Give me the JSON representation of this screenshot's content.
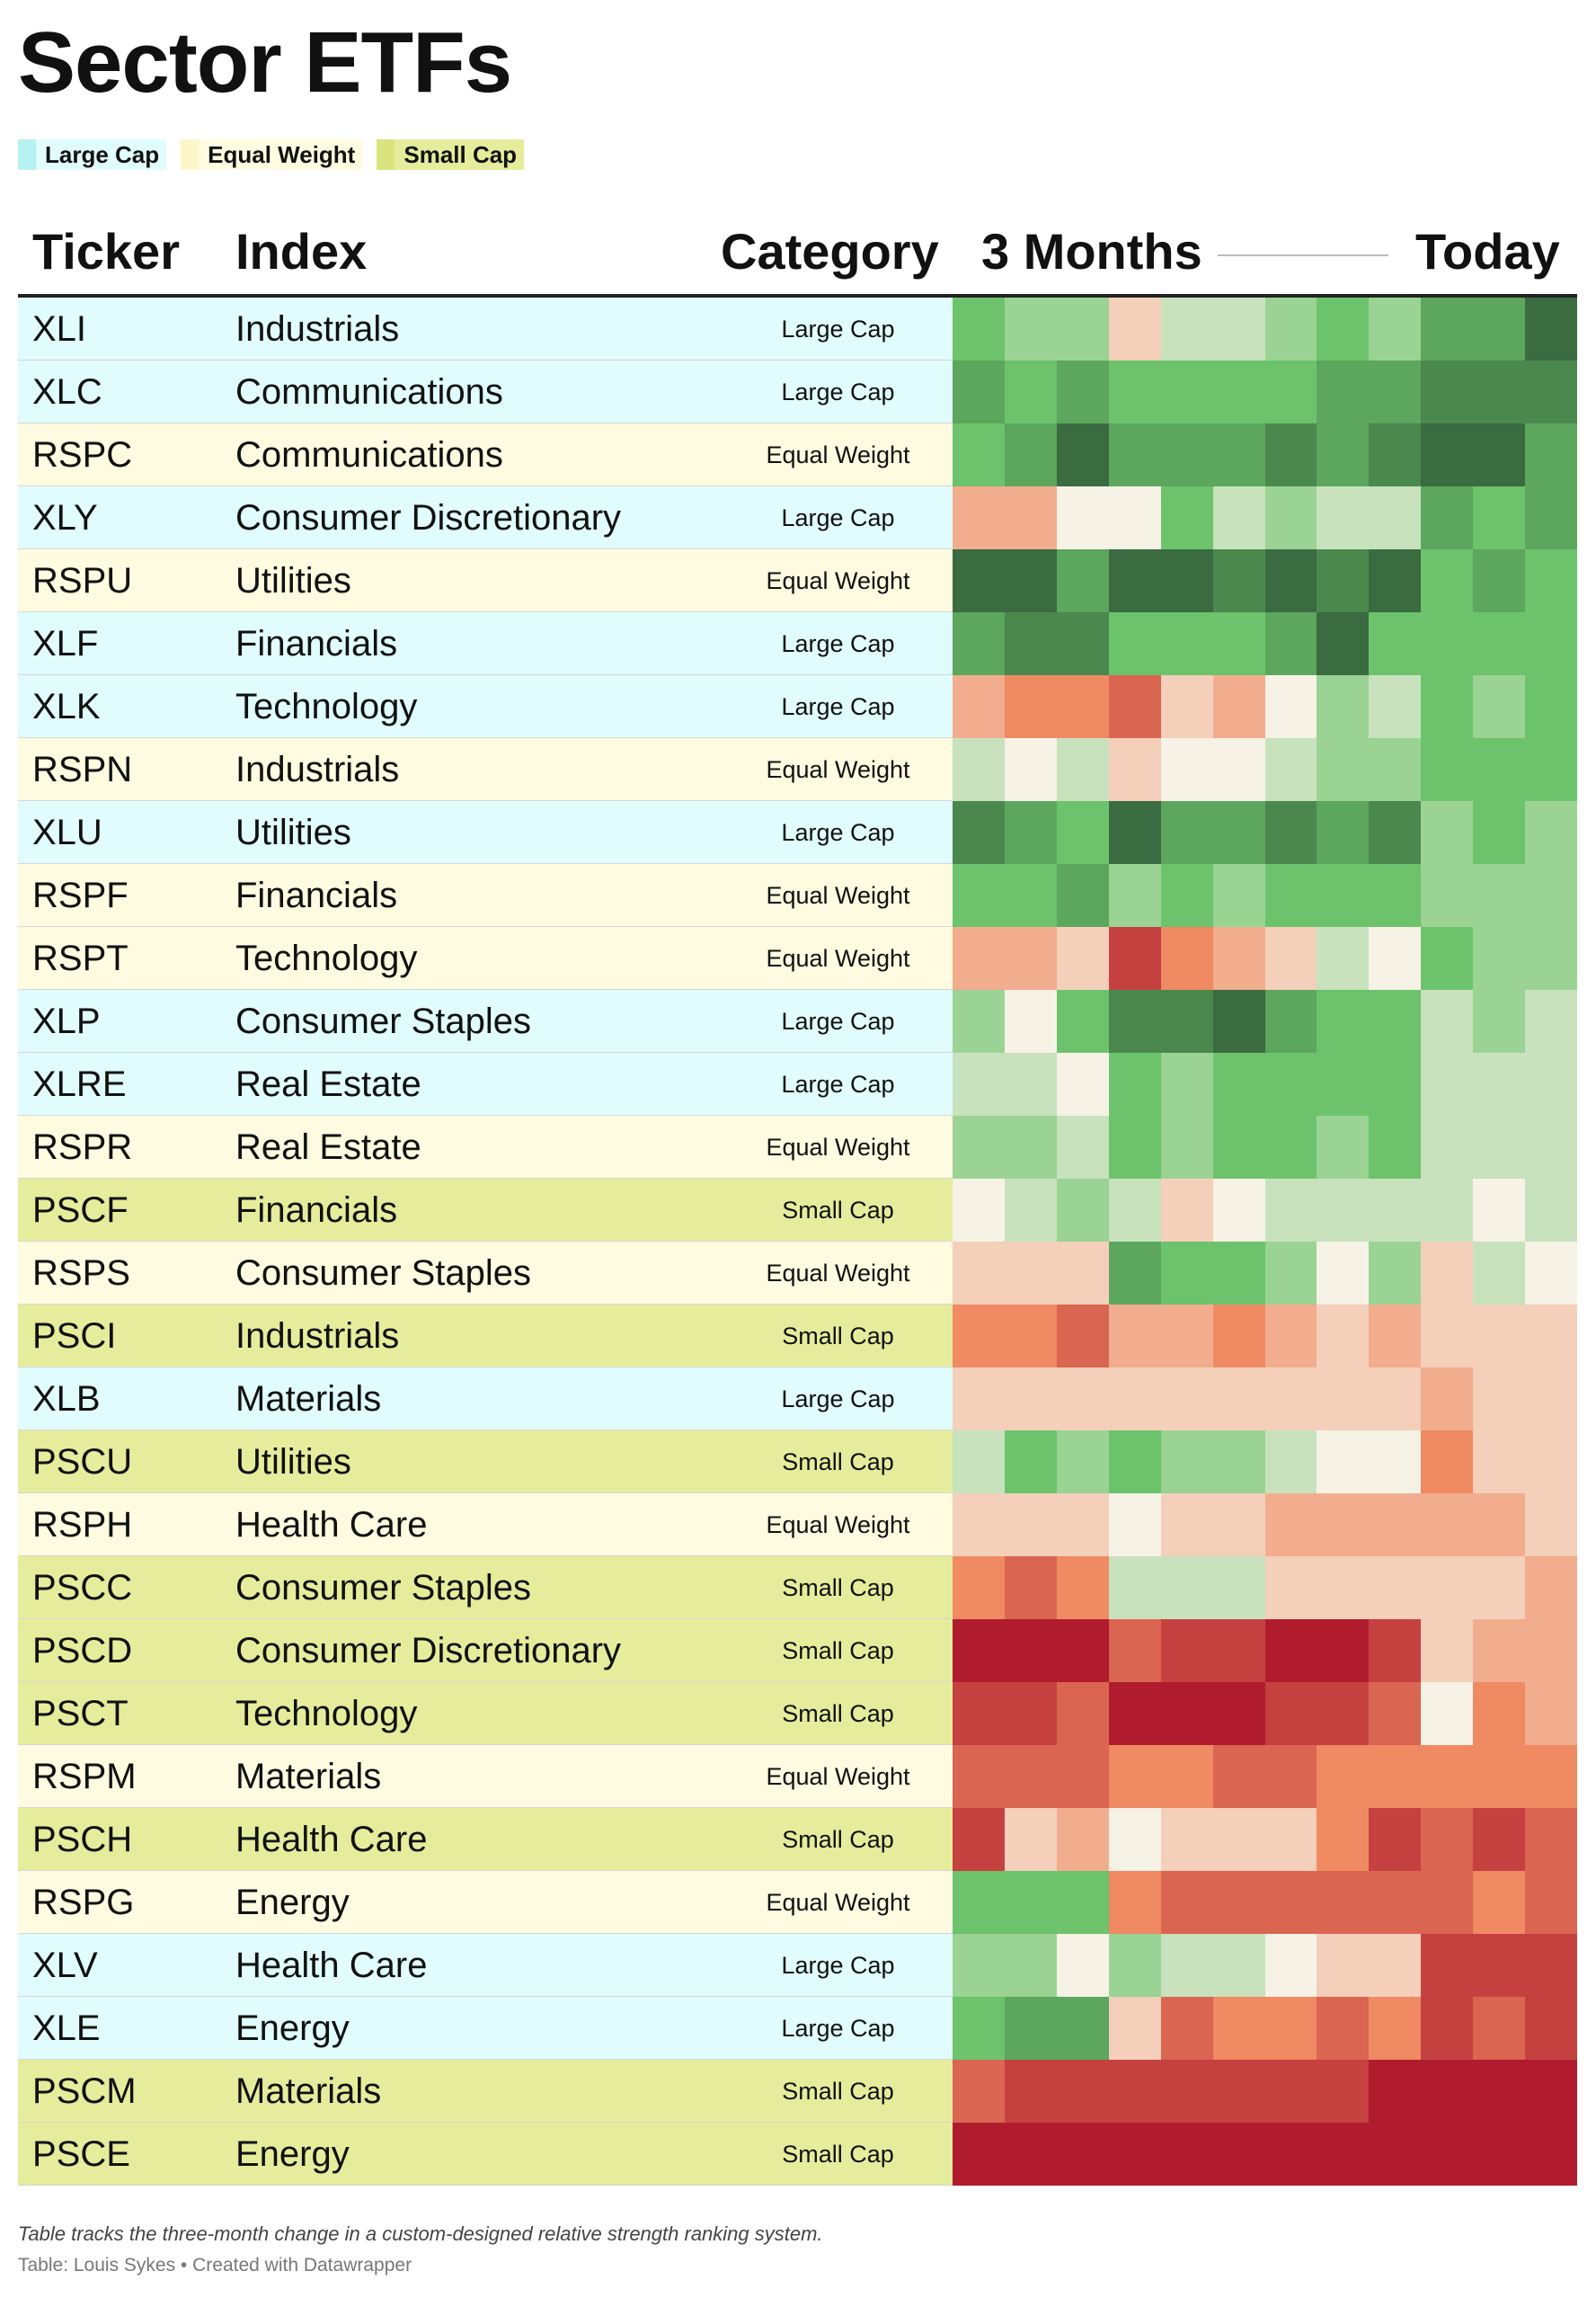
{
  "title": "Sector ETFs",
  "legend": [
    {
      "label": "Large Cap",
      "color": "#b6f2f2",
      "row_color": "#e0fcfc"
    },
    {
      "label": "Equal Weight",
      "color": "#fcf6c8",
      "row_color": "#fefbe0"
    },
    {
      "label": "Small Cap",
      "color": "#d9e47e",
      "row_color": "#e5ed9c"
    }
  ],
  "headers": {
    "ticker": "Ticker",
    "index": "Index",
    "category": "Category",
    "period_start": "3 Months",
    "period_end": "Today"
  },
  "footnote": "Table tracks the three-month change in a custom-designed relative strength ranking system.",
  "source": "Table: Louis Sykes • Created with Datawrapper",
  "chart_data": {
    "type": "heatmap",
    "title": "Sector ETFs",
    "color_scale": {
      "negative": "#b01c2e",
      "neutral": "#f6f2e6",
      "positive": "#3b6b40",
      "range": [
        -6,
        6
      ]
    },
    "columns": 12,
    "rows": [
      {
        "ticker": "XLI",
        "index": "Industrials",
        "category": "Large Cap",
        "values": [
          3,
          2,
          2,
          -1,
          1,
          1,
          2,
          3,
          2,
          4,
          4,
          6
        ]
      },
      {
        "ticker": "XLC",
        "index": "Communications",
        "category": "Large Cap",
        "values": [
          4,
          3,
          4,
          3,
          3,
          3,
          3,
          4,
          4,
          5,
          5,
          5
        ]
      },
      {
        "ticker": "RSPC",
        "index": "Communications",
        "category": "Equal Weight",
        "values": [
          3,
          4,
          6,
          4,
          4,
          4,
          5,
          4,
          5,
          6,
          6,
          4
        ]
      },
      {
        "ticker": "XLY",
        "index": "Consumer Discretionary",
        "category": "Large Cap",
        "values": [
          -2,
          -2,
          0,
          0,
          3,
          1,
          2,
          1,
          1,
          4,
          3,
          4
        ]
      },
      {
        "ticker": "RSPU",
        "index": "Utilities",
        "category": "Equal Weight",
        "values": [
          6,
          6,
          4,
          6,
          6,
          5,
          6,
          5,
          6,
          3,
          4,
          3
        ]
      },
      {
        "ticker": "XLF",
        "index": "Financials",
        "category": "Large Cap",
        "values": [
          4,
          5,
          5,
          3,
          3,
          3,
          4,
          6,
          3,
          3,
          3,
          3
        ]
      },
      {
        "ticker": "XLK",
        "index": "Technology",
        "category": "Large Cap",
        "values": [
          -2,
          -3,
          -3,
          -4,
          -1,
          -2,
          0,
          2,
          1,
          3,
          2,
          3
        ]
      },
      {
        "ticker": "RSPN",
        "index": "Industrials",
        "category": "Equal Weight",
        "values": [
          1,
          0,
          1,
          -1,
          0,
          0,
          1,
          2,
          2,
          3,
          3,
          3
        ]
      },
      {
        "ticker": "XLU",
        "index": "Utilities",
        "category": "Large Cap",
        "values": [
          5,
          4,
          3,
          6,
          4,
          4,
          5,
          4,
          5,
          2,
          3,
          2
        ]
      },
      {
        "ticker": "RSPF",
        "index": "Financials",
        "category": "Equal Weight",
        "values": [
          3,
          3,
          4,
          2,
          3,
          2,
          3,
          3,
          3,
          2,
          2,
          2
        ]
      },
      {
        "ticker": "RSPT",
        "index": "Technology",
        "category": "Equal Weight",
        "values": [
          -2,
          -2,
          -1,
          -5,
          -3,
          -2,
          -1,
          1,
          0,
          3,
          2,
          2
        ]
      },
      {
        "ticker": "XLP",
        "index": "Consumer Staples",
        "category": "Large Cap",
        "values": [
          2,
          0,
          3,
          5,
          5,
          6,
          4,
          3,
          3,
          1,
          2,
          1
        ]
      },
      {
        "ticker": "XLRE",
        "index": "Real Estate",
        "category": "Large Cap",
        "values": [
          1,
          1,
          0,
          3,
          2,
          3,
          3,
          3,
          3,
          1,
          1,
          1
        ]
      },
      {
        "ticker": "RSPR",
        "index": "Real Estate",
        "category": "Equal Weight",
        "values": [
          2,
          2,
          1,
          3,
          2,
          3,
          3,
          2,
          3,
          1,
          1,
          1
        ]
      },
      {
        "ticker": "PSCF",
        "index": "Financials",
        "category": "Small Cap",
        "values": [
          0,
          1,
          2,
          1,
          -1,
          0,
          1,
          1,
          1,
          1,
          0,
          1
        ]
      },
      {
        "ticker": "RSPS",
        "index": "Consumer Staples",
        "category": "Equal Weight",
        "values": [
          -1,
          -1,
          -1,
          4,
          3,
          3,
          2,
          0,
          2,
          -1,
          1,
          0
        ]
      },
      {
        "ticker": "PSCI",
        "index": "Industrials",
        "category": "Small Cap",
        "values": [
          -3,
          -3,
          -4,
          -2,
          -2,
          -3,
          -2,
          -1,
          -2,
          -1,
          -1,
          -1
        ]
      },
      {
        "ticker": "XLB",
        "index": "Materials",
        "category": "Large Cap",
        "values": [
          -1,
          -1,
          -1,
          -1,
          -1,
          -1,
          -1,
          -1,
          -1,
          -2,
          -1,
          -1
        ]
      },
      {
        "ticker": "PSCU",
        "index": "Utilities",
        "category": "Small Cap",
        "values": [
          1,
          3,
          2,
          3,
          2,
          2,
          1,
          0,
          0,
          -3,
          -1,
          -1
        ]
      },
      {
        "ticker": "RSPH",
        "index": "Health Care",
        "category": "Equal Weight",
        "values": [
          -1,
          -1,
          -1,
          0,
          -1,
          -1,
          -2,
          -2,
          -2,
          -2,
          -2,
          -1
        ]
      },
      {
        "ticker": "PSCC",
        "index": "Consumer Staples",
        "category": "Small Cap",
        "values": [
          -3,
          -4,
          -3,
          1,
          1,
          1,
          -1,
          -1,
          -1,
          -1,
          -1,
          -2
        ]
      },
      {
        "ticker": "PSCD",
        "index": "Consumer Discretionary",
        "category": "Small Cap",
        "values": [
          -6,
          -6,
          -6,
          -4,
          -5,
          -5,
          -6,
          -6,
          -5,
          -1,
          -2,
          -2
        ]
      },
      {
        "ticker": "PSCT",
        "index": "Technology",
        "category": "Small Cap",
        "values": [
          -5,
          -5,
          -4,
          -6,
          -6,
          -6,
          -5,
          -5,
          -4,
          0,
          -3,
          -2
        ]
      },
      {
        "ticker": "RSPM",
        "index": "Materials",
        "category": "Equal Weight",
        "values": [
          -4,
          -4,
          -4,
          -3,
          -3,
          -4,
          -4,
          -3,
          -3,
          -3,
          -3,
          -3
        ]
      },
      {
        "ticker": "PSCH",
        "index": "Health Care",
        "category": "Small Cap",
        "values": [
          -5,
          -1,
          -2,
          0,
          -1,
          -1,
          -1,
          -3,
          -5,
          -4,
          -5,
          -4
        ]
      },
      {
        "ticker": "RSPG",
        "index": "Energy",
        "category": "Equal Weight",
        "values": [
          3,
          3,
          3,
          -3,
          -4,
          -4,
          -4,
          -4,
          -4,
          -4,
          -3,
          -4
        ]
      },
      {
        "ticker": "XLV",
        "index": "Health Care",
        "category": "Large Cap",
        "values": [
          2,
          2,
          0,
          2,
          1,
          1,
          0,
          -1,
          -1,
          -5,
          -5,
          -5
        ]
      },
      {
        "ticker": "XLE",
        "index": "Energy",
        "category": "Large Cap",
        "values": [
          3,
          4,
          4,
          -1,
          -4,
          -3,
          -3,
          -4,
          -3,
          -5,
          -4,
          -5
        ]
      },
      {
        "ticker": "PSCM",
        "index": "Materials",
        "category": "Small Cap",
        "values": [
          -4,
          -5,
          -5,
          -5,
          -5,
          -5,
          -5,
          -5,
          -6,
          -6,
          -6,
          -6
        ]
      },
      {
        "ticker": "PSCE",
        "index": "Energy",
        "category": "Small Cap",
        "values": [
          -6,
          -6,
          -6,
          -6,
          -6,
          -6,
          -6,
          -6,
          -6,
          -6,
          -6,
          -6
        ]
      }
    ]
  }
}
